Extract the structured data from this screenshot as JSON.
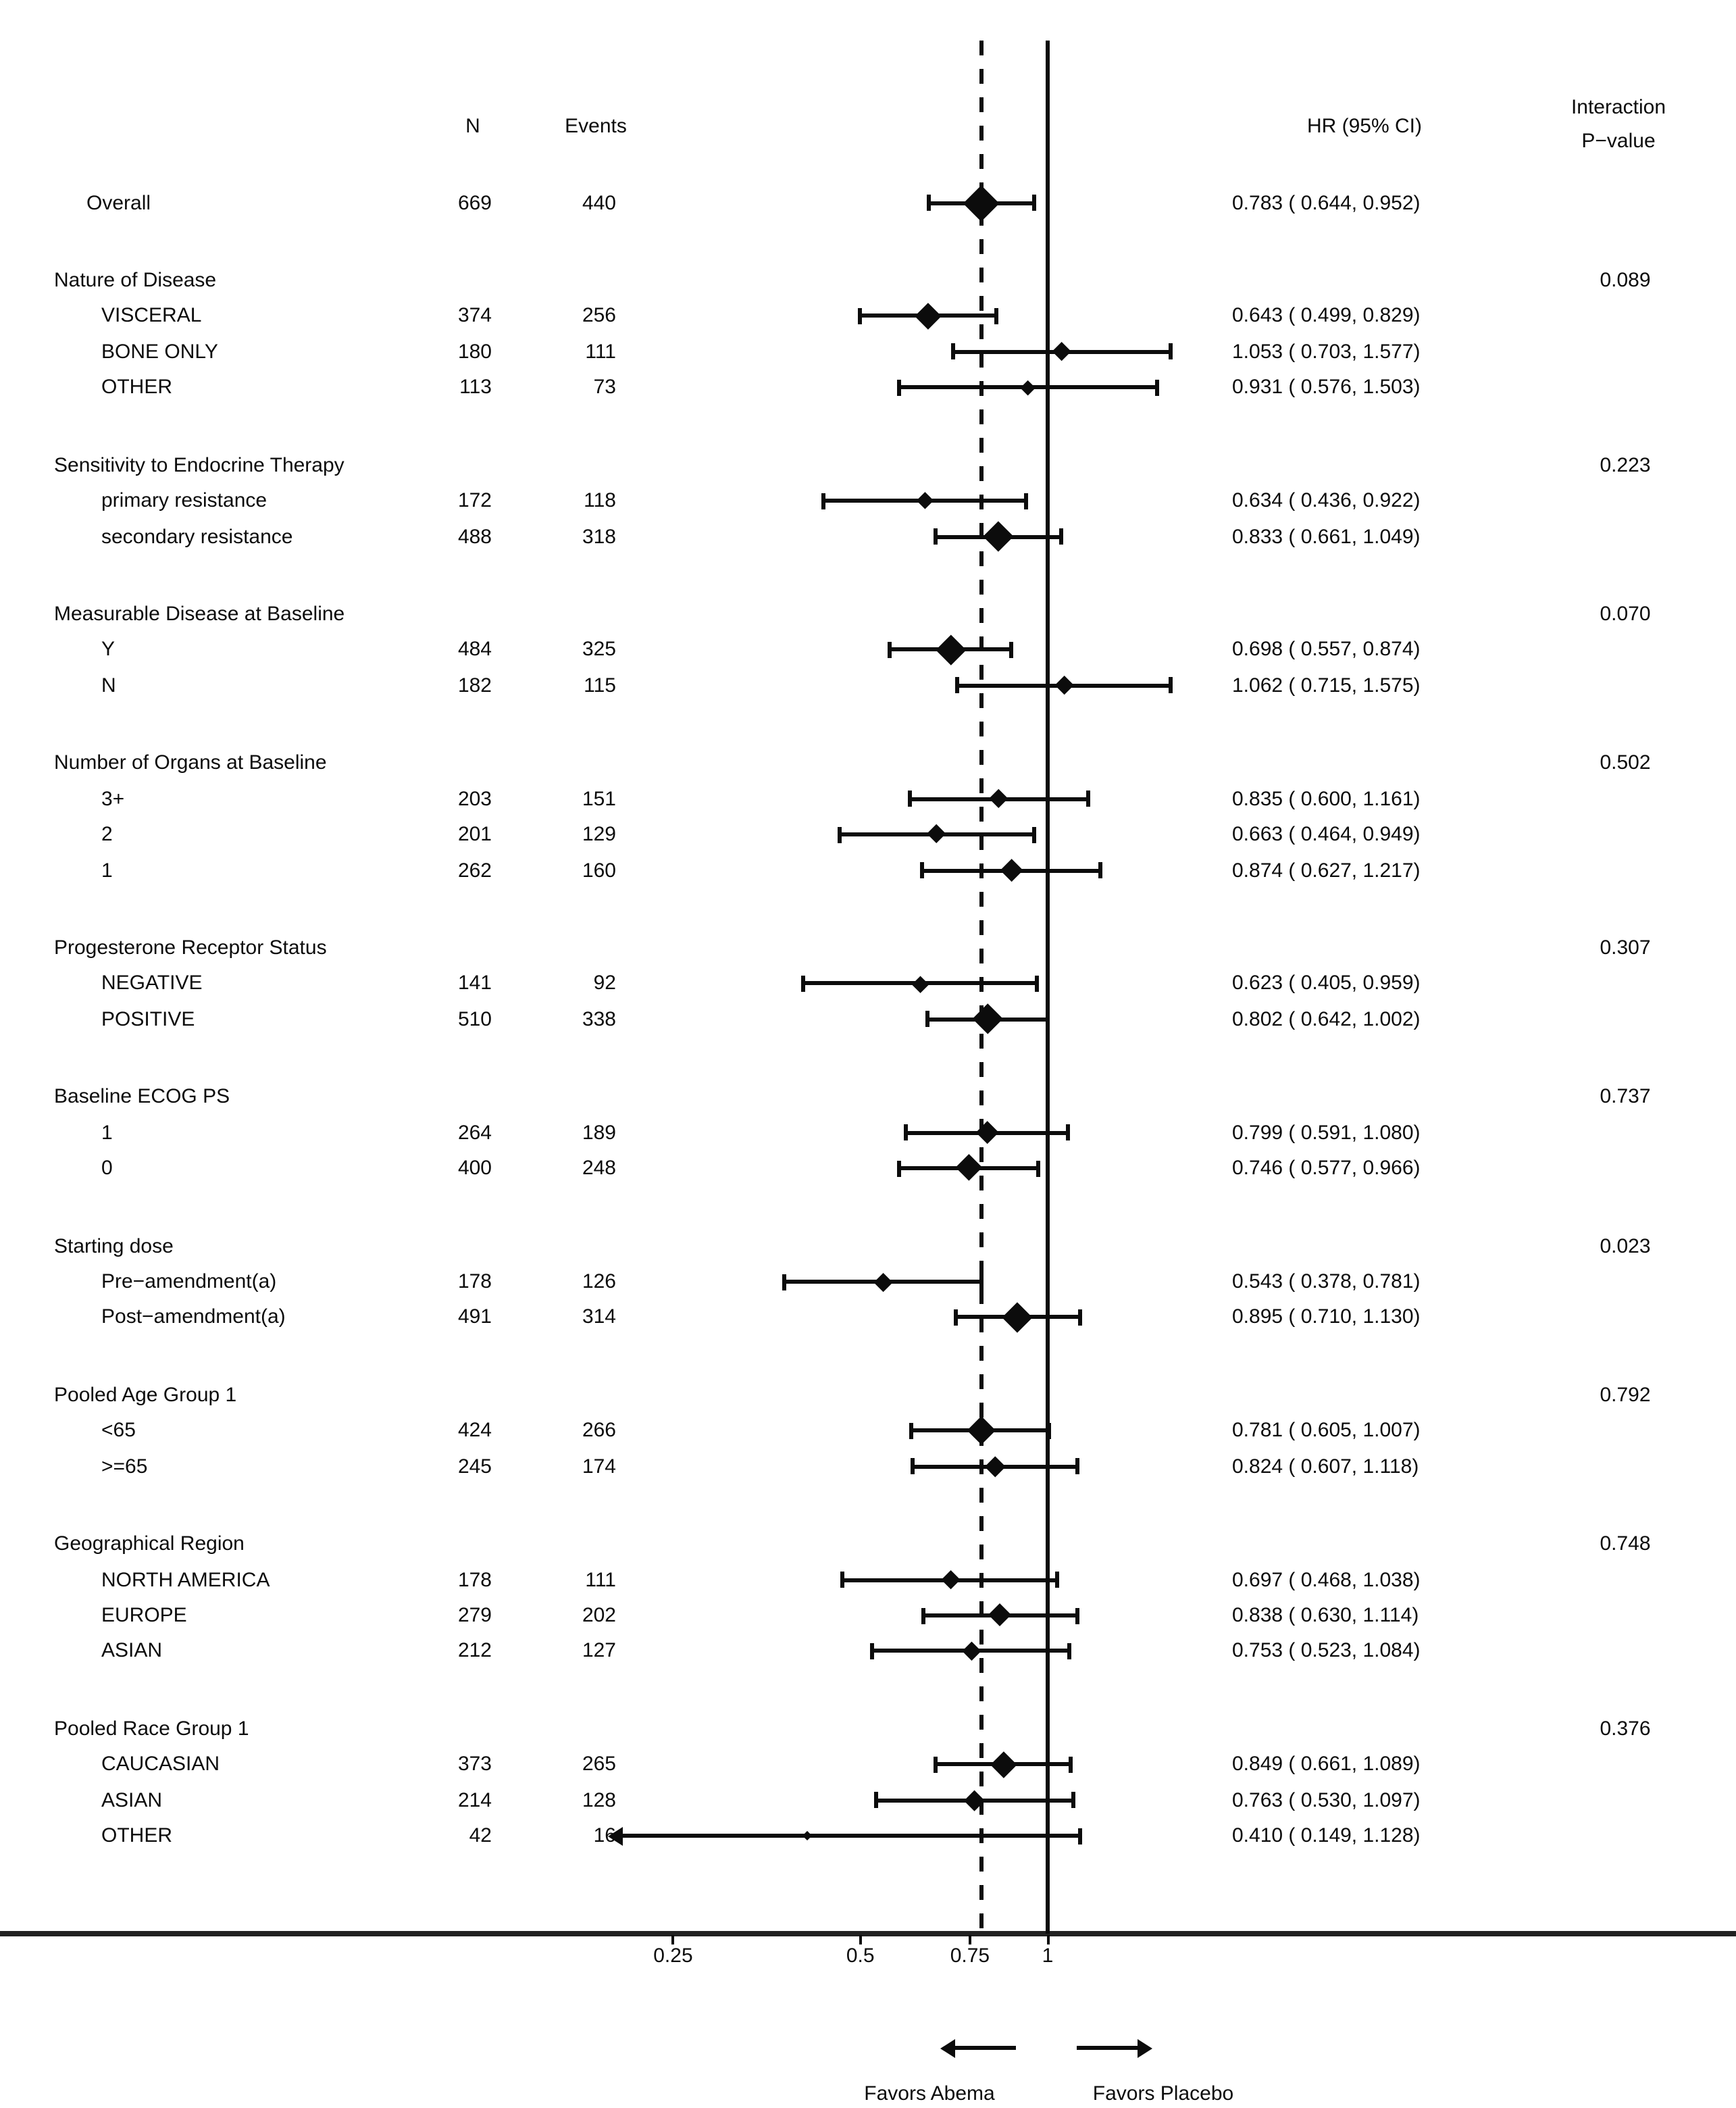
{
  "chart_data": {
    "type": "forest",
    "columns": {
      "n": "N",
      "events": "Events",
      "hr": "HR (95% CI)",
      "interaction_line1": "Interaction",
      "interaction_line2": "P−value"
    },
    "axis": {
      "scale": "log",
      "ticks": [
        0.25,
        0.5,
        0.75,
        1
      ],
      "tick_labels": [
        "0.25",
        "0.5",
        "0.75",
        "1"
      ],
      "reference_line": 1,
      "overall_dashed_line": 0.783
    },
    "favors": {
      "left": "Favors Abema",
      "right": "Favors Placebo"
    },
    "overall": {
      "label": "Overall",
      "n": 669,
      "events": 440,
      "hr": 0.783,
      "low": 0.644,
      "high": 0.952,
      "hr_text": "0.783 ( 0.644, 0.952)"
    },
    "groups": [
      {
        "label": "Nature of Disease",
        "p_value": "0.089",
        "rows": [
          {
            "label": "VISCERAL",
            "n": 374,
            "events": 256,
            "hr": 0.643,
            "low": 0.499,
            "high": 0.829,
            "hr_text": "0.643 ( 0.499, 0.829)"
          },
          {
            "label": "BONE ONLY",
            "n": 180,
            "events": 111,
            "hr": 1.053,
            "low": 0.703,
            "high": 1.577,
            "hr_text": "1.053 ( 0.703, 1.577)"
          },
          {
            "label": "OTHER",
            "n": 113,
            "events": 73,
            "hr": 0.931,
            "low": 0.576,
            "high": 1.503,
            "hr_text": "0.931 ( 0.576, 1.503)"
          }
        ]
      },
      {
        "label": "Sensitivity to Endocrine Therapy",
        "p_value": "0.223",
        "rows": [
          {
            "label": "primary resistance",
            "n": 172,
            "events": 118,
            "hr": 0.634,
            "low": 0.436,
            "high": 0.922,
            "hr_text": "0.634 ( 0.436, 0.922)"
          },
          {
            "label": "secondary resistance",
            "n": 488,
            "events": 318,
            "hr": 0.833,
            "low": 0.661,
            "high": 1.049,
            "hr_text": "0.833 ( 0.661, 1.049)"
          }
        ]
      },
      {
        "label": "Measurable Disease at Baseline",
        "p_value": "0.070",
        "rows": [
          {
            "label": "Y",
            "n": 484,
            "events": 325,
            "hr": 0.698,
            "low": 0.557,
            "high": 0.874,
            "hr_text": "0.698 ( 0.557, 0.874)"
          },
          {
            "label": "N",
            "n": 182,
            "events": 115,
            "hr": 1.062,
            "low": 0.715,
            "high": 1.575,
            "hr_text": "1.062 ( 0.715, 1.575)"
          }
        ]
      },
      {
        "label": "Number of Organs at Baseline",
        "p_value": "0.502",
        "rows": [
          {
            "label": "3+",
            "n": 203,
            "events": 151,
            "hr": 0.835,
            "low": 0.6,
            "high": 1.161,
            "hr_text": "0.835 ( 0.600, 1.161)"
          },
          {
            "label": "2",
            "n": 201,
            "events": 129,
            "hr": 0.663,
            "low": 0.464,
            "high": 0.949,
            "hr_text": "0.663 ( 0.464, 0.949)"
          },
          {
            "label": "1",
            "n": 262,
            "events": 160,
            "hr": 0.874,
            "low": 0.627,
            "high": 1.217,
            "hr_text": "0.874 ( 0.627, 1.217)"
          }
        ]
      },
      {
        "label": "Progesterone Receptor Status",
        "p_value": "0.307",
        "rows": [
          {
            "label": "NEGATIVE",
            "n": 141,
            "events": 92,
            "hr": 0.623,
            "low": 0.405,
            "high": 0.959,
            "hr_text": "0.623 ( 0.405, 0.959)"
          },
          {
            "label": "POSITIVE",
            "n": 510,
            "events": 338,
            "hr": 0.802,
            "low": 0.642,
            "high": 1.002,
            "hr_text": "0.802 ( 0.642, 1.002)"
          }
        ]
      },
      {
        "label": "Baseline ECOG PS",
        "p_value": "0.737",
        "rows": [
          {
            "label": "1",
            "n": 264,
            "events": 189,
            "hr": 0.799,
            "low": 0.591,
            "high": 1.08,
            "hr_text": "0.799 ( 0.591, 1.080)"
          },
          {
            "label": "0",
            "n": 400,
            "events": 248,
            "hr": 0.746,
            "low": 0.577,
            "high": 0.966,
            "hr_text": "0.746 ( 0.577, 0.966)"
          }
        ]
      },
      {
        "label": "Starting dose",
        "p_value": "0.023",
        "rows": [
          {
            "label": "Pre−amendment(a)",
            "n": 178,
            "events": 126,
            "hr": 0.543,
            "low": 0.378,
            "high": 0.781,
            "hr_text": "0.543 ( 0.378, 0.781)"
          },
          {
            "label": "Post−amendment(a)",
            "n": 491,
            "events": 314,
            "hr": 0.895,
            "low": 0.71,
            "high": 1.13,
            "hr_text": "0.895 ( 0.710, 1.130)"
          }
        ]
      },
      {
        "label": "Pooled Age Group 1",
        "p_value": "0.792",
        "rows": [
          {
            "label": "<65",
            "n": 424,
            "events": 266,
            "hr": 0.781,
            "low": 0.605,
            "high": 1.007,
            "hr_text": "0.781 ( 0.605, 1.007)"
          },
          {
            "label": ">=65",
            "n": 245,
            "events": 174,
            "hr": 0.824,
            "low": 0.607,
            "high": 1.118,
            "hr_text": "0.824 ( 0.607, 1.118)"
          }
        ]
      },
      {
        "label": "Geographical Region",
        "p_value": "0.748",
        "rows": [
          {
            "label": "NORTH AMERICA",
            "n": 178,
            "events": 111,
            "hr": 0.697,
            "low": 0.468,
            "high": 1.038,
            "hr_text": "0.697 ( 0.468, 1.038)"
          },
          {
            "label": "EUROPE",
            "n": 279,
            "events": 202,
            "hr": 0.838,
            "low": 0.63,
            "high": 1.114,
            "hr_text": "0.838 ( 0.630, 1.114)"
          },
          {
            "label": "ASIAN",
            "n": 212,
            "events": 127,
            "hr": 0.753,
            "low": 0.523,
            "high": 1.084,
            "hr_text": "0.753 ( 0.523, 1.084)"
          }
        ]
      },
      {
        "label": "Pooled Race Group 1",
        "p_value": "0.376",
        "rows": [
          {
            "label": "CAUCASIAN",
            "n": 373,
            "events": 265,
            "hr": 0.849,
            "low": 0.661,
            "high": 1.089,
            "hr_text": "0.849 ( 0.661, 1.089)"
          },
          {
            "label": "ASIAN",
            "n": 214,
            "events": 128,
            "hr": 0.763,
            "low": 0.53,
            "high": 1.097,
            "hr_text": "0.763 ( 0.530, 1.097)"
          },
          {
            "label": "OTHER",
            "n": 42,
            "events": 16,
            "hr": 0.41,
            "low": 0.149,
            "high": 1.128,
            "hr_text": "0.410 ( 0.149, 1.128)",
            "ci_clipped_left": true
          }
        ]
      }
    ]
  }
}
